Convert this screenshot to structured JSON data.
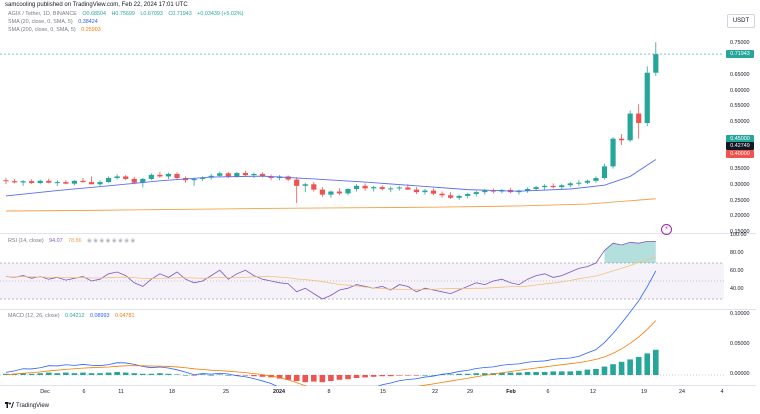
{
  "header": {
    "published": "samcooling published on TradingView.com, Feb 22, 2024 17:01 UTC"
  },
  "legend": {
    "symbol": {
      "name": "AGIX / Tether, 1D, BINANCE",
      "o": "O0.68504",
      "h": "H0.75699",
      "l": "L0.67093",
      "c": "C0.71943",
      "chg": "+0.03439 (+5.02%)"
    },
    "sma20": {
      "name": "SMA (20, close, 0, SMA, 5)",
      "value": "0.38424",
      "color": "#2962ff"
    },
    "sma200": {
      "name": "SMA (200, close, 0, SMA, 5)",
      "value": "0.25903",
      "color": "#f57c00"
    },
    "rsi": {
      "name": "RSI (14, close)",
      "value": "94.07",
      "value2": "78.86"
    },
    "macd": {
      "name": "MACD (12, 26, close)",
      "hist": "0.04212",
      "macd": "0.08993",
      "signal": "0.04781"
    }
  },
  "currency_button": "USDT",
  "colors": {
    "up": "#26a69a",
    "down": "#ef5350",
    "sma20": "#5b6ef0",
    "sma200": "#f5a04a",
    "rsi": "#7e57c2"
  },
  "price_axis": {
    "ticks": [
      "0.75000",
      "0.65000",
      "0.60000",
      "0.55000",
      "0.50000",
      "0.35000",
      "0.30000",
      "0.25000",
      "0.20000",
      "0.15000"
    ],
    "badges": [
      {
        "label": "0.71943",
        "color": "#26a69a"
      },
      {
        "label": "0.45000",
        "color": "#26a69a"
      },
      {
        "label": "0.42749",
        "color": "#131722"
      },
      {
        "label": "0.40000",
        "color": "#ef5350"
      }
    ]
  },
  "rsi_axis": {
    "ticks": [
      "100.00",
      "80.00",
      "60.00",
      "40.00"
    ]
  },
  "macd_axis": {
    "ticks": [
      "0.10000",
      "0.05000",
      "0.00000"
    ]
  },
  "x_axis": {
    "ticks": [
      "Dec",
      "6",
      "11",
      "18",
      "25",
      "2024",
      "8",
      "15",
      "22",
      "29",
      "Feb",
      "6",
      "12",
      "19",
      "24",
      "4"
    ]
  },
  "chart_data": {
    "type": "candlestick",
    "ylim": [
      0.15,
      0.78
    ],
    "candles": [
      [
        0.318,
        0.325,
        0.305,
        0.315
      ],
      [
        0.315,
        0.322,
        0.308,
        0.311
      ],
      [
        0.311,
        0.318,
        0.3,
        0.315
      ],
      [
        0.315,
        0.321,
        0.306,
        0.309
      ],
      [
        0.309,
        0.32,
        0.305,
        0.316
      ],
      [
        0.316,
        0.323,
        0.308,
        0.31
      ],
      [
        0.31,
        0.318,
        0.3,
        0.312
      ],
      [
        0.312,
        0.318,
        0.305,
        0.307
      ],
      [
        0.307,
        0.318,
        0.302,
        0.316
      ],
      [
        0.316,
        0.325,
        0.31,
        0.312
      ],
      [
        0.312,
        0.33,
        0.306,
        0.305
      ],
      [
        0.305,
        0.318,
        0.3,
        0.312
      ],
      [
        0.312,
        0.33,
        0.31,
        0.325
      ],
      [
        0.325,
        0.336,
        0.32,
        0.33
      ],
      [
        0.33,
        0.334,
        0.318,
        0.322
      ],
      [
        0.322,
        0.328,
        0.305,
        0.31
      ],
      [
        0.31,
        0.325,
        0.295,
        0.322
      ],
      [
        0.322,
        0.34,
        0.318,
        0.335
      ],
      [
        0.335,
        0.345,
        0.325,
        0.33
      ],
      [
        0.33,
        0.342,
        0.322,
        0.338
      ],
      [
        0.338,
        0.343,
        0.32,
        0.325
      ],
      [
        0.325,
        0.33,
        0.31,
        0.318
      ],
      [
        0.318,
        0.326,
        0.3,
        0.322
      ],
      [
        0.322,
        0.33,
        0.315,
        0.326
      ],
      [
        0.326,
        0.338,
        0.32,
        0.332
      ],
      [
        0.332,
        0.345,
        0.328,
        0.34
      ],
      [
        0.34,
        0.344,
        0.325,
        0.33
      ],
      [
        0.33,
        0.345,
        0.326,
        0.341
      ],
      [
        0.341,
        0.348,
        0.33,
        0.334
      ],
      [
        0.334,
        0.342,
        0.325,
        0.338
      ],
      [
        0.338,
        0.343,
        0.327,
        0.33
      ],
      [
        0.33,
        0.336,
        0.318,
        0.325
      ],
      [
        0.325,
        0.334,
        0.318,
        0.33
      ],
      [
        0.33,
        0.333,
        0.315,
        0.32
      ],
      [
        0.32,
        0.328,
        0.245,
        0.3
      ],
      [
        0.3,
        0.31,
        0.28,
        0.305
      ],
      [
        0.305,
        0.312,
        0.282,
        0.288
      ],
      [
        0.288,
        0.296,
        0.265,
        0.272
      ],
      [
        0.272,
        0.285,
        0.262,
        0.282
      ],
      [
        0.282,
        0.292,
        0.27,
        0.276
      ],
      [
        0.276,
        0.292,
        0.27,
        0.29
      ],
      [
        0.29,
        0.305,
        0.282,
        0.3
      ],
      [
        0.3,
        0.308,
        0.285,
        0.292
      ],
      [
        0.292,
        0.3,
        0.282,
        0.296
      ],
      [
        0.296,
        0.302,
        0.285,
        0.29
      ],
      [
        0.29,
        0.298,
        0.28,
        0.292
      ],
      [
        0.292,
        0.3,
        0.285,
        0.295
      ],
      [
        0.295,
        0.305,
        0.288,
        0.288
      ],
      [
        0.288,
        0.296,
        0.274,
        0.28
      ],
      [
        0.28,
        0.29,
        0.272,
        0.285
      ],
      [
        0.285,
        0.292,
        0.27,
        0.275
      ],
      [
        0.275,
        0.282,
        0.262,
        0.27
      ],
      [
        0.27,
        0.28,
        0.258,
        0.262
      ],
      [
        0.262,
        0.272,
        0.255,
        0.268
      ],
      [
        0.268,
        0.278,
        0.26,
        0.274
      ],
      [
        0.274,
        0.284,
        0.266,
        0.28
      ],
      [
        0.28,
        0.29,
        0.272,
        0.285
      ],
      [
        0.285,
        0.292,
        0.276,
        0.282
      ],
      [
        0.282,
        0.29,
        0.276,
        0.287
      ],
      [
        0.287,
        0.294,
        0.276,
        0.28
      ],
      [
        0.28,
        0.288,
        0.272,
        0.285
      ],
      [
        0.285,
        0.295,
        0.278,
        0.29
      ],
      [
        0.29,
        0.3,
        0.284,
        0.296
      ],
      [
        0.296,
        0.305,
        0.288,
        0.3
      ],
      [
        0.3,
        0.308,
        0.292,
        0.296
      ],
      [
        0.296,
        0.305,
        0.29,
        0.302
      ],
      [
        0.302,
        0.312,
        0.296,
        0.308
      ],
      [
        0.308,
        0.318,
        0.3,
        0.31
      ],
      [
        0.31,
        0.32,
        0.305,
        0.316
      ],
      [
        0.316,
        0.33,
        0.31,
        0.325
      ],
      [
        0.325,
        0.37,
        0.32,
        0.362
      ],
      [
        0.362,
        0.455,
        0.355,
        0.45
      ],
      [
        0.45,
        0.465,
        0.43,
        0.445
      ],
      [
        0.445,
        0.54,
        0.44,
        0.53
      ],
      [
        0.53,
        0.56,
        0.45,
        0.5
      ],
      [
        0.5,
        0.68,
        0.49,
        0.66
      ],
      [
        0.66,
        0.757,
        0.65,
        0.719
      ]
    ],
    "sma20": [
      [
        0,
        0.268
      ],
      [
        6,
        0.285
      ],
      [
        12,
        0.3
      ],
      [
        18,
        0.316
      ],
      [
        24,
        0.328
      ],
      [
        30,
        0.331
      ],
      [
        36,
        0.322
      ],
      [
        42,
        0.312
      ],
      [
        48,
        0.3
      ],
      [
        54,
        0.288
      ],
      [
        60,
        0.283
      ],
      [
        66,
        0.29
      ],
      [
        70,
        0.302
      ],
      [
        73,
        0.33
      ],
      [
        76,
        0.384
      ]
    ],
    "sma200": [
      [
        0,
        0.22
      ],
      [
        10,
        0.222
      ],
      [
        20,
        0.225
      ],
      [
        30,
        0.228
      ],
      [
        40,
        0.23
      ],
      [
        50,
        0.232
      ],
      [
        60,
        0.236
      ],
      [
        68,
        0.242
      ],
      [
        76,
        0.259
      ]
    ],
    "rsi": [
      55,
      54,
      56,
      53,
      55,
      52,
      54,
      51,
      53,
      55,
      50,
      52,
      58,
      60,
      56,
      48,
      44,
      52,
      58,
      54,
      60,
      52,
      48,
      50,
      56,
      62,
      52,
      58,
      62,
      56,
      52,
      50,
      48,
      47,
      38,
      42,
      36,
      30,
      34,
      40,
      42,
      46,
      44,
      42,
      44,
      40,
      46,
      44,
      38,
      42,
      40,
      38,
      36,
      40,
      44,
      48,
      46,
      50,
      52,
      48,
      46,
      52,
      56,
      58,
      54,
      56,
      60,
      64,
      66,
      70,
      84,
      92,
      90,
      93,
      92,
      94,
      94
    ],
    "macd_hist": [
      0.002,
      0.002,
      0.003,
      0.002,
      0.003,
      0.004,
      0.003,
      0.004,
      0.003,
      0.004,
      0.003,
      0.003,
      0.004,
      0.005,
      0.004,
      0.003,
      0.002,
      0.002,
      0.003,
      0.002,
      0.001,
      0.0,
      -0.001,
      0.001,
      0.0,
      0.001,
      0.0,
      -0.001,
      -0.001,
      -0.002,
      -0.003,
      -0.004,
      -0.006,
      -0.008,
      -0.01,
      -0.012,
      -0.011,
      -0.012,
      -0.01,
      -0.008,
      -0.007,
      -0.005,
      -0.004,
      -0.003,
      -0.002,
      -0.002,
      -0.001,
      -0.001,
      -0.001,
      0.0,
      0.0,
      0.001,
      0.001,
      0.002,
      0.002,
      0.003,
      0.003,
      0.003,
      0.004,
      0.004,
      0.004,
      0.005,
      0.005,
      0.005,
      0.006,
      0.006,
      0.006,
      0.007,
      0.009,
      0.01,
      0.014,
      0.018,
      0.022,
      0.026,
      0.03,
      0.036,
      0.042
    ]
  }
}
